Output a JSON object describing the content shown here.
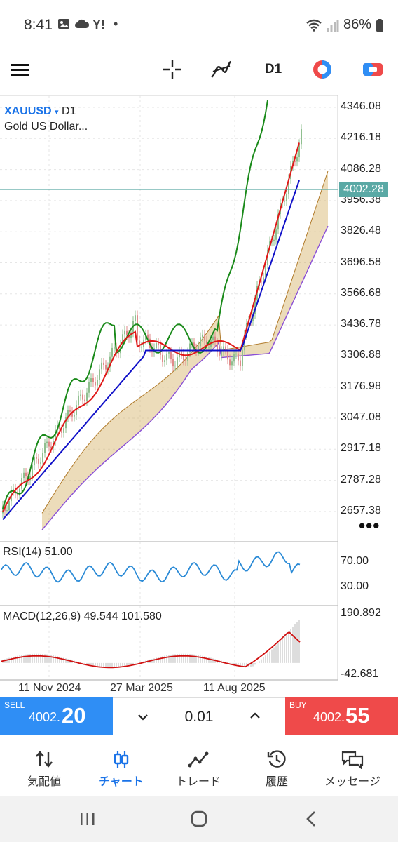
{
  "status": {
    "time": "8:41",
    "app_icons": [
      "gallery-icon",
      "cloud-icon",
      "yahoo-icon"
    ],
    "battery": "86%"
  },
  "toolbar": {
    "timeframe": "D1",
    "icons": [
      "menu-icon",
      "crosshair-icon",
      "indicators-icon",
      "trade-mode-icon",
      "order-icon"
    ]
  },
  "chart": {
    "symbol": "XAUUSD",
    "symbol_caret": "▾",
    "timeframe": "D1",
    "description": "Gold US Dollar...",
    "current_price": "4002.28",
    "price_axis": [
      "4346.08",
      "4216.18",
      "4086.28",
      "3956.38",
      "3826.48",
      "3696.58",
      "3566.68",
      "3436.78",
      "3306.88",
      "3176.98",
      "3047.08",
      "2917.18",
      "2787.28",
      "2657.38"
    ],
    "dates": [
      "11 Nov 2024",
      "27 Mar 2025",
      "11 Aug 2025"
    ],
    "more": "•••",
    "colors": {
      "green": "#1a8a1a",
      "red": "#e01818",
      "blue": "#1010c8",
      "cloud_edge": "#8a4fd6",
      "cloud_fill": "#c89b3a",
      "current": "#5aa9a5"
    }
  },
  "rsi": {
    "label": "RSI(14) 51.00",
    "levels": [
      "70.00",
      "30.00"
    ],
    "color": "#2a8ad6"
  },
  "macd": {
    "label": "MACD(12,26,9) 49.544 101.580",
    "axis": [
      "190.892",
      "-42.681"
    ],
    "signal_color": "#d01010"
  },
  "trade": {
    "sell_label": "SELL",
    "sell_price_small": "4002.",
    "sell_price_big": "20",
    "lot": "0.01",
    "buy_label": "BUY",
    "buy_price_small": "4002.",
    "buy_price_big": "55"
  },
  "nav": {
    "items": [
      {
        "label": "気配値",
        "icon": "quotes-icon"
      },
      {
        "label": "チャート",
        "icon": "chart-icon"
      },
      {
        "label": "トレード",
        "icon": "trade-icon"
      },
      {
        "label": "履歴",
        "icon": "history-icon"
      },
      {
        "label": "メッセージ",
        "icon": "messages-icon"
      }
    ],
    "active": "チャート"
  }
}
